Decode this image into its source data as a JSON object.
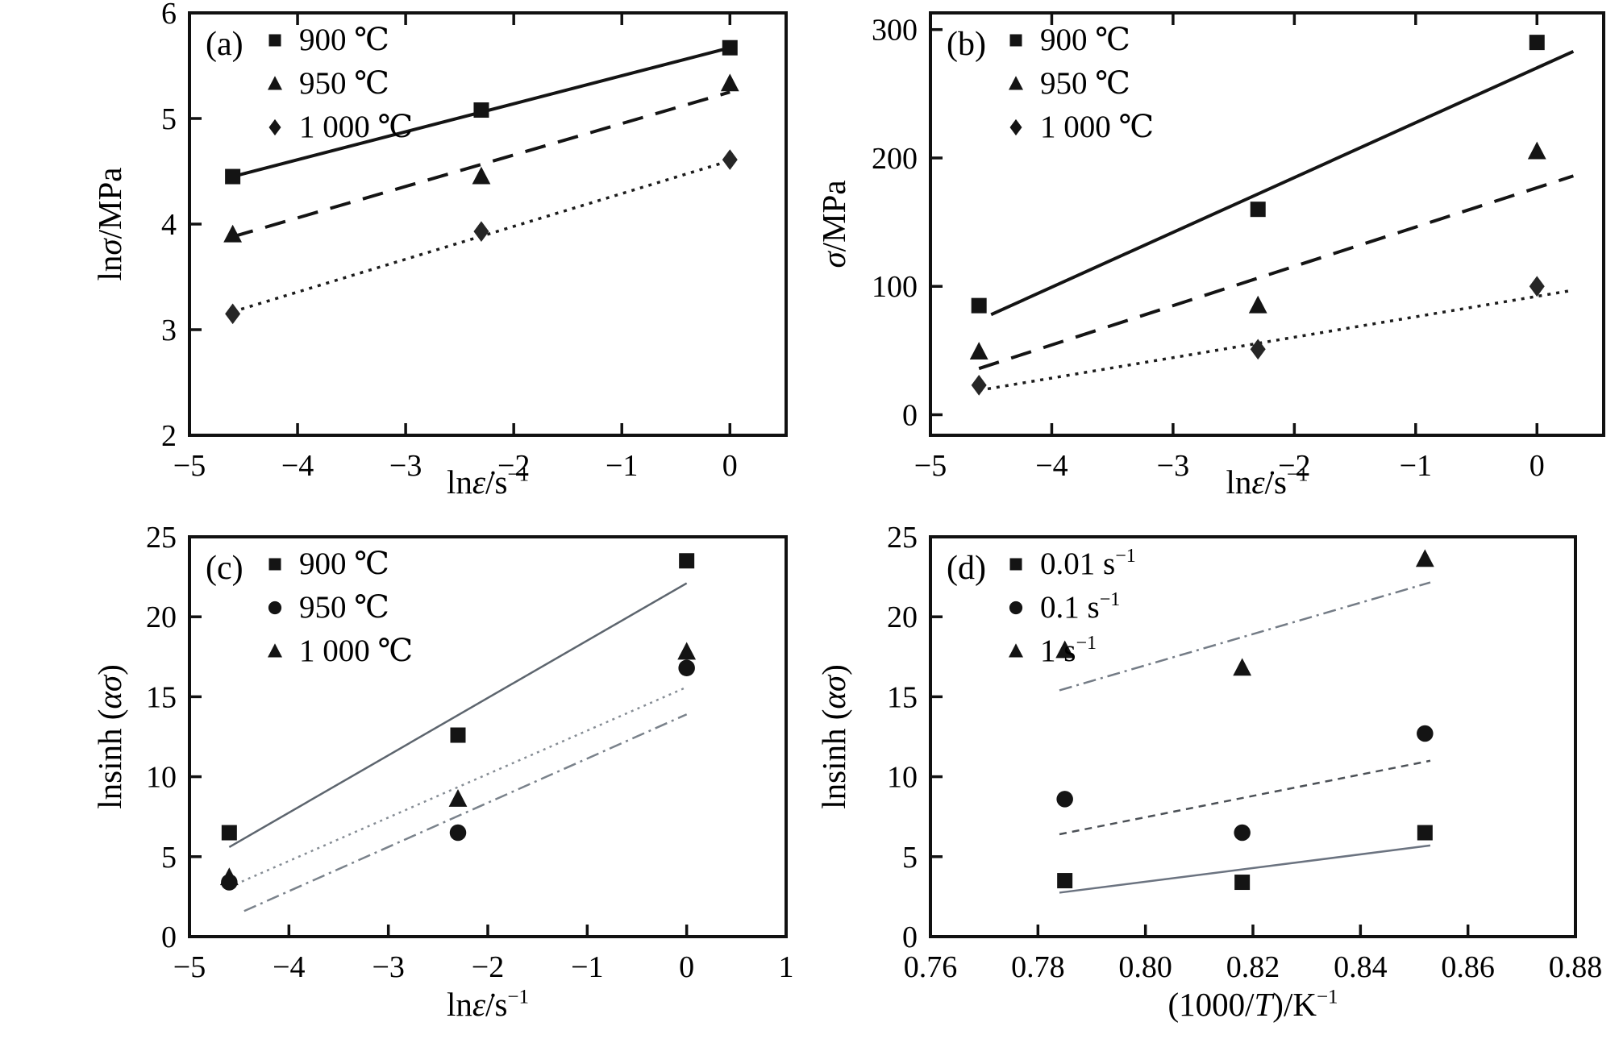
{
  "page": {
    "background": "#ffffff",
    "text_color": "#000000"
  },
  "chart_data": [
    {
      "id": "a",
      "panel_label": "(a)",
      "type": "scatter",
      "xlabel_parts": [
        {
          "t": "ln"
        },
        {
          "t": "ε̇",
          "i": 1
        },
        {
          "t": "/s"
        },
        {
          "t": "−1",
          "sup": 1
        }
      ],
      "ylabel_parts": [
        {
          "t": "ln"
        },
        {
          "t": "σ",
          "i": 1
        },
        {
          "t": "/MPa"
        }
      ],
      "xlim": [
        -5,
        0.52
      ],
      "ylim": [
        2,
        6
      ],
      "xticks": [
        -5,
        -4,
        -3,
        -2,
        -1,
        0
      ],
      "xtick_labels": [
        "−5",
        "−4",
        "−3",
        "−2",
        "−1",
        "0"
      ],
      "yticks": [
        2,
        3,
        4,
        5,
        6
      ],
      "ytick_labels": [
        "2",
        "3",
        "4",
        "5",
        "6"
      ],
      "mirror_top_ticks": true,
      "grid": false,
      "legend_position": "top-left",
      "legend": [
        {
          "marker": "square",
          "label_parts": [
            {
              "t": "900 ℃"
            }
          ]
        },
        {
          "marker": "triangle",
          "label_parts": [
            {
              "t": "950 ℃"
            }
          ]
        },
        {
          "marker": "diamond",
          "label_parts": [
            {
              "t": "1 000 ℃"
            }
          ]
        }
      ],
      "series": [
        {
          "name": "900 ℃",
          "marker": "square",
          "color": "#141414",
          "points": [
            [
              -4.6,
              4.45
            ],
            [
              -2.3,
              5.08
            ],
            [
              0,
              5.67
            ]
          ]
        },
        {
          "name": "950 ℃",
          "marker": "triangle",
          "color": "#141414",
          "points": [
            [
              -4.6,
              3.9
            ],
            [
              -2.3,
              4.45
            ],
            [
              0,
              5.33
            ]
          ]
        },
        {
          "name": "1 000 ℃",
          "marker": "diamond",
          "color": "#262626",
          "points": [
            [
              -4.6,
              3.15
            ],
            [
              -2.3,
              3.93
            ],
            [
              0,
              4.61
            ]
          ]
        }
      ],
      "fit_lines": [
        {
          "series": "900 ℃",
          "color": "#141414",
          "width": 4,
          "dash": "",
          "x1": -4.6,
          "y1": 4.45,
          "x2": 0,
          "y2": 5.67
        },
        {
          "series": "950 ℃",
          "color": "#141414",
          "width": 4,
          "dash": "26 16",
          "x1": -4.6,
          "y1": 3.88,
          "x2": 0,
          "y2": 5.25
        },
        {
          "series": "1 000 ℃",
          "color": "#1c1c1c",
          "width": 3.5,
          "dash": "4 7",
          "x1": -4.6,
          "y1": 3.17,
          "x2": 0,
          "y2": 4.6
        }
      ]
    },
    {
      "id": "b",
      "panel_label": "(b)",
      "type": "scatter",
      "xlabel_parts": [
        {
          "t": "ln"
        },
        {
          "t": "ε̇",
          "i": 1
        },
        {
          "t": "/s"
        },
        {
          "t": "−1",
          "sup": 1
        }
      ],
      "ylabel_parts": [
        {
          "t": "σ",
          "i": 1
        },
        {
          "t": "/MPa"
        }
      ],
      "xlim": [
        -5,
        0.55
      ],
      "ylim": [
        -16,
        313
      ],
      "xticks": [
        -5,
        -4,
        -3,
        -2,
        -1,
        0
      ],
      "xtick_labels": [
        "−5",
        "−4",
        "−3",
        "−2",
        "−1",
        "0"
      ],
      "yticks": [
        0,
        100,
        200,
        300
      ],
      "ytick_labels": [
        "0",
        "100",
        "200",
        "300"
      ],
      "mirror_top_ticks": true,
      "grid": false,
      "legend_position": "top-left",
      "legend": [
        {
          "marker": "square",
          "label_parts": [
            {
              "t": "900 ℃"
            }
          ]
        },
        {
          "marker": "triangle",
          "label_parts": [
            {
              "t": "950 ℃"
            }
          ]
        },
        {
          "marker": "diamond",
          "label_parts": [
            {
              "t": "1 000 ℃"
            }
          ]
        }
      ],
      "series": [
        {
          "name": "900 ℃",
          "marker": "square",
          "color": "#141414",
          "points": [
            [
              -4.6,
              85
            ],
            [
              -2.3,
              160
            ],
            [
              0,
              290
            ]
          ]
        },
        {
          "name": "950 ℃",
          "marker": "triangle",
          "color": "#141414",
          "points": [
            [
              -4.6,
              49
            ],
            [
              -2.3,
              85
            ],
            [
              0,
              205
            ]
          ]
        },
        {
          "name": "1 000 ℃",
          "marker": "diamond",
          "color": "#262626",
          "points": [
            [
              -4.6,
              23
            ],
            [
              -2.3,
              51
            ],
            [
              0,
              100
            ]
          ]
        }
      ],
      "fit_lines": [
        {
          "series": "900 ℃",
          "color": "#141414",
          "width": 4,
          "dash": "",
          "x1": -4.5,
          "y1": 78,
          "x2": 0.3,
          "y2": 283
        },
        {
          "series": "950 ℃",
          "color": "#141414",
          "width": 4,
          "dash": "26 16",
          "x1": -4.6,
          "y1": 36,
          "x2": 0.3,
          "y2": 186
        },
        {
          "series": "1 000 ℃",
          "color": "#1c1c1c",
          "width": 3.5,
          "dash": "4 7",
          "x1": -4.6,
          "y1": 19,
          "x2": 0.3,
          "y2": 97
        }
      ]
    },
    {
      "id": "c",
      "panel_label": "(c)",
      "type": "scatter",
      "xlabel_parts": [
        {
          "t": "ln"
        },
        {
          "t": "ε̇",
          "i": 1
        },
        {
          "t": "/s"
        },
        {
          "t": "−1",
          "sup": 1
        }
      ],
      "ylabel_parts": [
        {
          "t": "lnsinh ("
        },
        {
          "t": "ασ",
          "i": 1
        },
        {
          "t": ")"
        }
      ],
      "xlim": [
        -5,
        1
      ],
      "ylim": [
        0,
        25
      ],
      "xticks": [
        -5,
        -4,
        -3,
        -2,
        -1,
        0,
        1
      ],
      "xtick_labels": [
        "−5",
        "−4",
        "−3",
        "−2",
        "−1",
        "0",
        "1"
      ],
      "yticks": [
        0,
        5,
        10,
        15,
        20,
        25
      ],
      "ytick_labels": [
        "0",
        "5",
        "10",
        "15",
        "20",
        "25"
      ],
      "mirror_top_ticks": false,
      "grid": false,
      "legend_position": "top-left",
      "legend": [
        {
          "marker": "square",
          "label_parts": [
            {
              "t": "900 ℃"
            }
          ]
        },
        {
          "marker": "circle",
          "label_parts": [
            {
              "t": "950 ℃"
            }
          ]
        },
        {
          "marker": "triangle",
          "label_parts": [
            {
              "t": "1 000 ℃"
            }
          ]
        }
      ],
      "series": [
        {
          "name": "900 ℃",
          "marker": "square",
          "color": "#141414",
          "points": [
            [
              -4.6,
              6.5
            ],
            [
              -2.3,
              12.6
            ],
            [
              0,
              23.5
            ]
          ]
        },
        {
          "name": "950 ℃",
          "marker": "circle",
          "color": "#141414",
          "points": [
            [
              -4.6,
              3.4
            ],
            [
              -2.3,
              6.5
            ],
            [
              0,
              16.8
            ]
          ]
        },
        {
          "name": "1 000 ℃",
          "marker": "triangle",
          "color": "#141414",
          "points": [
            [
              -4.6,
              3.7
            ],
            [
              -2.3,
              8.6
            ],
            [
              0,
              17.8
            ]
          ]
        }
      ],
      "fit_lines": [
        {
          "series": "900 ℃",
          "color": "#5d656e",
          "width": 2.5,
          "dash": "",
          "x1": -4.6,
          "y1": 5.6,
          "x2": 0,
          "y2": 22.1
        },
        {
          "series": "950 ℃",
          "color": "#868d95",
          "width": 2.5,
          "dash": "3 5.5",
          "x1": -4.6,
          "y1": 3.1,
          "x2": 0,
          "y2": 15.6
        },
        {
          "series": "1 000 ℃",
          "color": "#7a828b",
          "width": 2.5,
          "dash": "16 6 3 6",
          "x1": -4.45,
          "y1": 1.6,
          "x2": 0,
          "y2": 13.9
        }
      ]
    },
    {
      "id": "d",
      "panel_label": "(d)",
      "type": "scatter",
      "xlabel_parts": [
        {
          "t": "(1000/"
        },
        {
          "t": "T",
          "i": 1
        },
        {
          "t": ")/K"
        },
        {
          "t": "−1",
          "sup": 1
        }
      ],
      "ylabel_parts": [
        {
          "t": "lnsinh ("
        },
        {
          "t": "ασ",
          "i": 1
        },
        {
          "t": ")"
        }
      ],
      "xlim": [
        0.76,
        0.88
      ],
      "ylim": [
        0,
        25
      ],
      "xticks": [
        0.76,
        0.78,
        0.8,
        0.82,
        0.84,
        0.86,
        0.88
      ],
      "xtick_labels": [
        "0.76",
        "0.78",
        "0.80",
        "0.82",
        "0.84",
        "0.86",
        "0.88"
      ],
      "yticks": [
        0,
        5,
        10,
        15,
        20,
        25
      ],
      "ytick_labels": [
        "0",
        "5",
        "10",
        "15",
        "20",
        "25"
      ],
      "mirror_top_ticks": false,
      "grid": false,
      "legend_position": "top-left",
      "legend": [
        {
          "marker": "square",
          "label_parts": [
            {
              "t": "0.01 s"
            },
            {
              "t": "−1",
              "sup": 1
            }
          ]
        },
        {
          "marker": "circle",
          "label_parts": [
            {
              "t": "0.1 s"
            },
            {
              "t": "−1",
              "sup": 1
            }
          ]
        },
        {
          "marker": "triangle",
          "label_parts": [
            {
              "t": "1 s"
            },
            {
              "t": "−1",
              "sup": 1
            }
          ]
        }
      ],
      "series": [
        {
          "name": "0.01 s−1",
          "marker": "square",
          "color": "#141414",
          "points": [
            [
              0.785,
              3.5
            ],
            [
              0.818,
              3.4
            ],
            [
              0.852,
              6.5
            ]
          ]
        },
        {
          "name": "0.1 s−1",
          "marker": "circle",
          "color": "#141414",
          "points": [
            [
              0.785,
              8.6
            ],
            [
              0.818,
              6.5
            ],
            [
              0.852,
              12.7
            ]
          ]
        },
        {
          "name": "1 s−1",
          "marker": "triangle",
          "color": "#141414",
          "points": [
            [
              0.785,
              17.9
            ],
            [
              0.818,
              16.8
            ],
            [
              0.852,
              23.6
            ]
          ]
        }
      ],
      "fit_lines": [
        {
          "series": "0.01 s−1",
          "color": "#6b7380",
          "width": 2.5,
          "dash": "",
          "x1": 0.784,
          "y1": 2.75,
          "x2": 0.853,
          "y2": 5.7
        },
        {
          "series": "0.1 s−1",
          "color": "#4c5157",
          "width": 2.5,
          "dash": "9 7",
          "x1": 0.784,
          "y1": 6.4,
          "x2": 0.853,
          "y2": 11.0
        },
        {
          "series": "1 s−1",
          "color": "#747c86",
          "width": 2.5,
          "dash": "16 6 3 6",
          "x1": 0.784,
          "y1": 15.4,
          "x2": 0.853,
          "y2": 22.15
        }
      ]
    }
  ]
}
